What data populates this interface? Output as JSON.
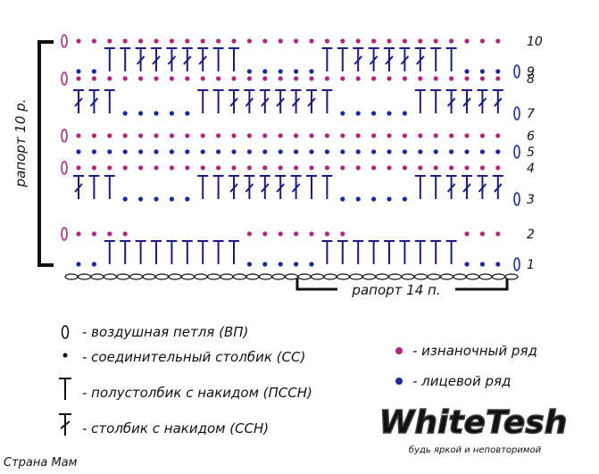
{
  "row_numbers": [
    "1",
    "2",
    "3",
    "4",
    "5",
    "6",
    "7",
    "8",
    "9",
    "10"
  ],
  "repeat_rows": "рапорт 10 р.",
  "repeat_stitches": "рапорт 14 п.",
  "legend": [
    "- воздушная петля (ВП)",
    "- соединительный столбик  (СС)",
    "- полустолбик с накидом (ПССН)",
    "- столбик с накидом (ССН)"
  ],
  "row_legend": [
    "- изнаночный ряд",
    "- лицевой ряд"
  ],
  "logo": {
    "title": "WhiteTesh",
    "slogan": "будь яркой и неповторимой"
  },
  "watermark": "Страна Мам"
}
